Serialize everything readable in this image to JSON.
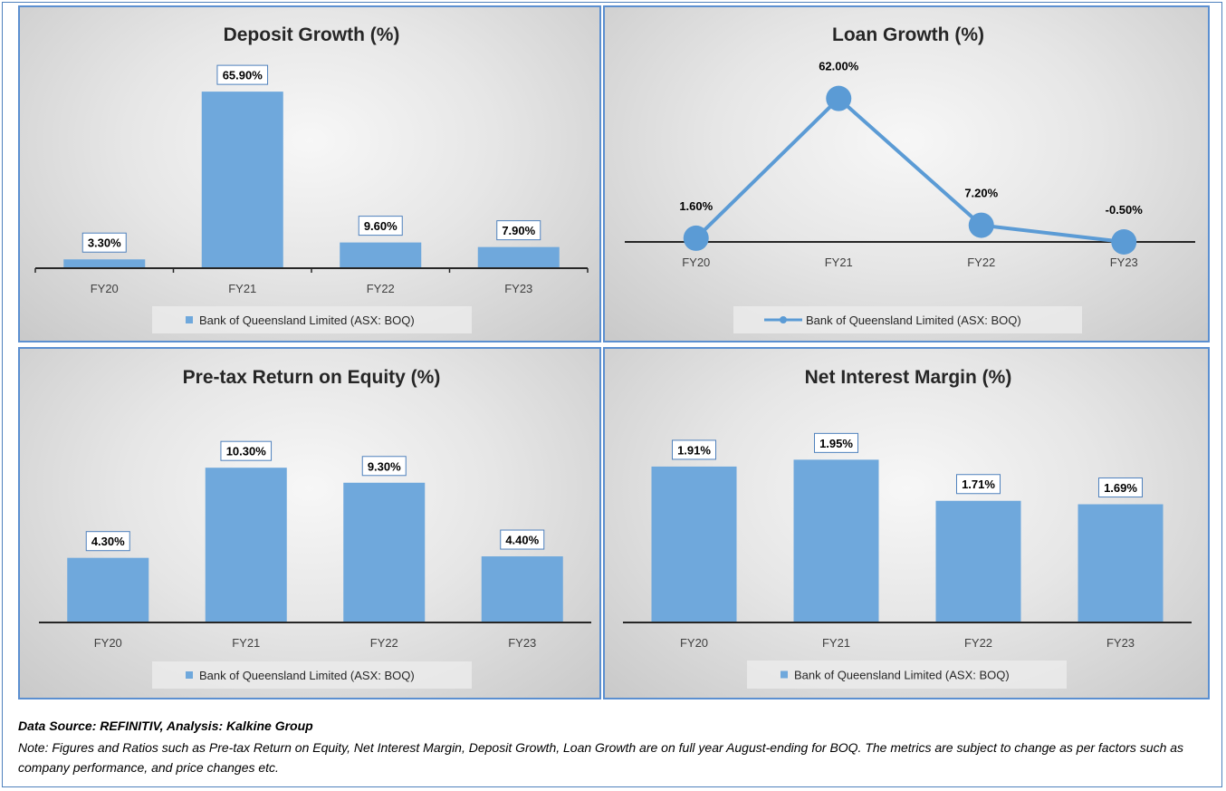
{
  "colors": {
    "series": "#6fa8dc",
    "line": "#5b9bd5",
    "axis": "#262626",
    "panel_border": "#5b8fd0"
  },
  "chart_data": [
    {
      "type": "bar",
      "title": "Deposit Growth (%)",
      "categories": [
        "FY20",
        "FY21",
        "FY22",
        "FY23"
      ],
      "series": [
        {
          "name": "Bank of Queensland Limited (ASX: BOQ)",
          "values": [
            3.3,
            65.9,
            9.6,
            7.9
          ]
        }
      ],
      "data_labels": [
        "3.30%",
        "65.90%",
        "9.60%",
        "7.90%"
      ],
      "ylim": [
        0,
        70
      ],
      "grid": false,
      "legend_position": "bottom"
    },
    {
      "type": "line",
      "title": "Loan Growth (%)",
      "categories": [
        "FY20",
        "FY21",
        "FY22",
        "FY23"
      ],
      "series": [
        {
          "name": "Bank of Queensland Limited (ASX: BOQ)",
          "values": [
            1.6,
            62.0,
            7.2,
            -0.5
          ]
        }
      ],
      "data_labels": [
        "1.60%",
        "62.00%",
        "7.20%",
        "-0.50%"
      ],
      "ylim": [
        0,
        65
      ],
      "grid": false,
      "legend_position": "bottom"
    },
    {
      "type": "bar",
      "title": "Pre-tax Return on Equity (%)",
      "categories": [
        "FY20",
        "FY21",
        "FY22",
        "FY23"
      ],
      "series": [
        {
          "name": "Bank of Queensland Limited (ASX: BOQ)",
          "values": [
            4.3,
            10.3,
            9.3,
            4.4
          ]
        }
      ],
      "data_labels": [
        "4.30%",
        "10.30%",
        "9.30%",
        "4.40%"
      ],
      "ylim": [
        0,
        12
      ],
      "grid": false,
      "legend_position": "bottom"
    },
    {
      "type": "bar",
      "title": "Net Interest Margin (%)",
      "categories": [
        "FY20",
        "FY21",
        "FY22",
        "FY23"
      ],
      "series": [
        {
          "name": "Bank of Queensland Limited (ASX: BOQ)",
          "values": [
            1.91,
            1.95,
            1.71,
            1.69
          ]
        }
      ],
      "data_labels": [
        "1.91%",
        "1.95%",
        "1.71%",
        "1.69%"
      ],
      "ylim": [
        1.0,
        2.1
      ],
      "grid": false,
      "legend_position": "bottom"
    }
  ],
  "footer": {
    "source": "Data Source: REFINITIV, Analysis: Kalkine Group",
    "note": "Note: Figures and Ratios such as Pre-tax Return on Equity, Net Interest Margin, Deposit Growth, Loan Growth are on full year August-ending for BOQ. The metrics are subject to change as per factors such as company performance, and price changes etc."
  }
}
